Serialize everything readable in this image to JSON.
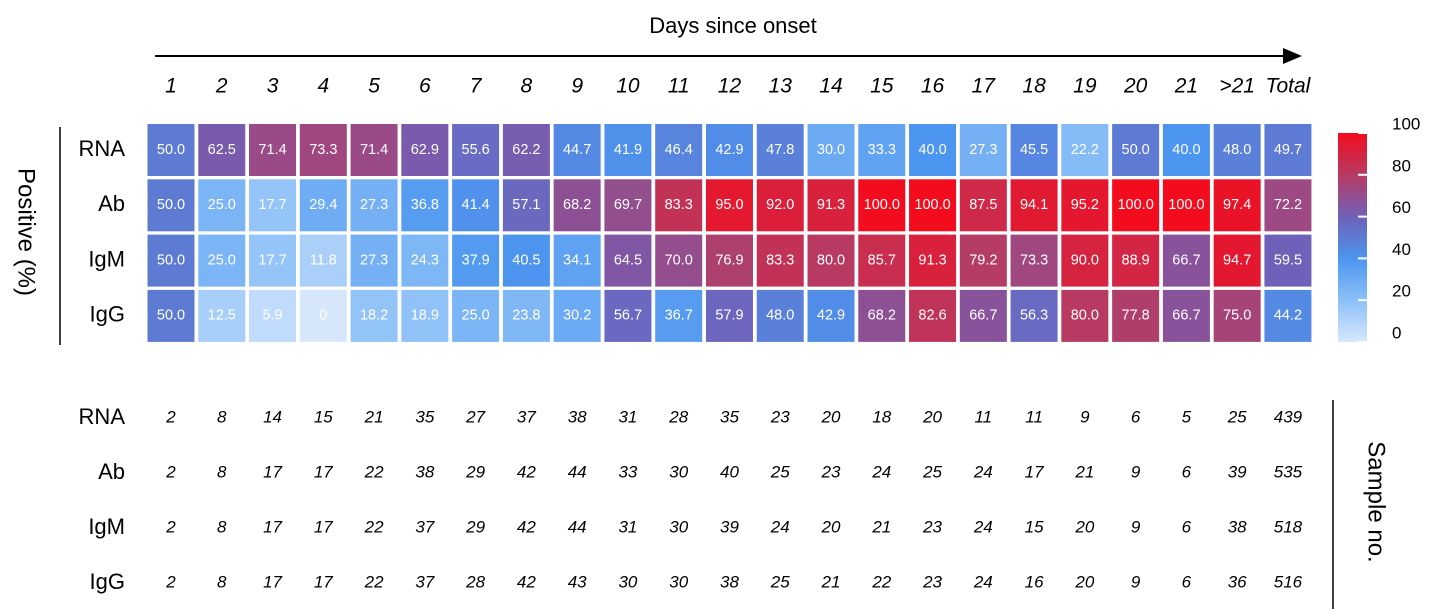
{
  "chart_data": {
    "type": "heatmap",
    "title": "Days since onset",
    "ylabel": "Positive (%)",
    "categories": [
      "1",
      "2",
      "3",
      "4",
      "5",
      "6",
      "7",
      "8",
      "9",
      "10",
      "11",
      "12",
      "13",
      "14",
      "15",
      "16",
      "17",
      "18",
      "19",
      "20",
      "21",
      ">21",
      "Total"
    ],
    "rows": [
      "RNA",
      "Ab",
      "IgM",
      "IgG"
    ],
    "values": [
      [
        50.0,
        62.5,
        71.4,
        73.3,
        71.4,
        62.9,
        55.6,
        62.2,
        44.7,
        41.9,
        46.4,
        42.9,
        47.8,
        30.0,
        33.3,
        40.0,
        27.3,
        45.5,
        22.2,
        50.0,
        40.0,
        48.0,
        49.7
      ],
      [
        50.0,
        25.0,
        17.7,
        29.4,
        27.3,
        36.8,
        41.4,
        57.1,
        68.2,
        69.7,
        83.3,
        95.0,
        92.0,
        91.3,
        100.0,
        100.0,
        87.5,
        94.1,
        95.2,
        100.0,
        100.0,
        97.4,
        72.2
      ],
      [
        50.0,
        25.0,
        17.7,
        11.8,
        27.3,
        24.3,
        37.9,
        40.5,
        34.1,
        64.5,
        70.0,
        76.9,
        83.3,
        80.0,
        85.7,
        91.3,
        79.2,
        73.3,
        90.0,
        88.9,
        66.7,
        94.7,
        59.5
      ],
      [
        50.0,
        12.5,
        5.9,
        0,
        18.2,
        18.9,
        25.0,
        23.8,
        30.2,
        56.7,
        36.7,
        57.9,
        48.0,
        42.9,
        68.2,
        82.6,
        66.7,
        56.3,
        80.0,
        77.8,
        66.7,
        75.0,
        44.2
      ]
    ],
    "value_labels": [
      [
        "50.0",
        "62.5",
        "71.4",
        "73.3",
        "71.4",
        "62.9",
        "55.6",
        "62.2",
        "44.7",
        "41.9",
        "46.4",
        "42.9",
        "47.8",
        "30.0",
        "33.3",
        "40.0",
        "27.3",
        "45.5",
        "22.2",
        "50.0",
        "40.0",
        "48.0",
        "49.7"
      ],
      [
        "50.0",
        "25.0",
        "17.7",
        "29.4",
        "27.3",
        "36.8",
        "41.4",
        "57.1",
        "68.2",
        "69.7",
        "83.3",
        "95.0",
        "92.0",
        "91.3",
        "100.0",
        "100.0",
        "87.5",
        "94.1",
        "95.2",
        "100.0",
        "100.0",
        "97.4",
        "72.2"
      ],
      [
        "50.0",
        "25.0",
        "17.7",
        "11.8",
        "27.3",
        "24.3",
        "37.9",
        "40.5",
        "34.1",
        "64.5",
        "70.0",
        "76.9",
        "83.3",
        "80.0",
        "85.7",
        "91.3",
        "79.2",
        "73.3",
        "90.0",
        "88.9",
        "66.7",
        "94.7",
        "59.5"
      ],
      [
        "50.0",
        "12.5",
        "5.9",
        "0",
        "18.2",
        "18.9",
        "25.0",
        "23.8",
        "30.2",
        "56.7",
        "36.7",
        "57.9",
        "48.0",
        "42.9",
        "68.2",
        "82.6",
        "66.7",
        "56.3",
        "80.0",
        "77.8",
        "66.7",
        "75.0",
        "44.2"
      ]
    ],
    "clim": [
      0,
      100
    ],
    "colorbar_ticks": [
      0,
      20,
      40,
      60,
      80,
      100
    ],
    "colormap": [
      "#d6e7fc",
      "#8cc0f8",
      "#4c95f0",
      "#7060b8",
      "#b83a62",
      "#f20c1e"
    ],
    "counts_label": "Sample no.",
    "count_rows": [
      "RNA",
      "Ab",
      "IgM",
      "IgG"
    ],
    "counts": [
      [
        2,
        8,
        14,
        15,
        21,
        35,
        27,
        37,
        38,
        31,
        28,
        35,
        23,
        20,
        18,
        20,
        11,
        11,
        9,
        6,
        5,
        25,
        439
      ],
      [
        2,
        8,
        17,
        17,
        22,
        38,
        29,
        42,
        44,
        33,
        30,
        40,
        25,
        23,
        24,
        25,
        24,
        17,
        21,
        9,
        6,
        39,
        535
      ],
      [
        2,
        8,
        17,
        17,
        22,
        37,
        29,
        42,
        44,
        31,
        30,
        39,
        24,
        20,
        21,
        23,
        24,
        15,
        20,
        9,
        6,
        38,
        518
      ],
      [
        2,
        8,
        17,
        17,
        22,
        37,
        28,
        42,
        43,
        30,
        30,
        38,
        25,
        21,
        22,
        23,
        24,
        16,
        20,
        9,
        6,
        36,
        516
      ]
    ]
  }
}
